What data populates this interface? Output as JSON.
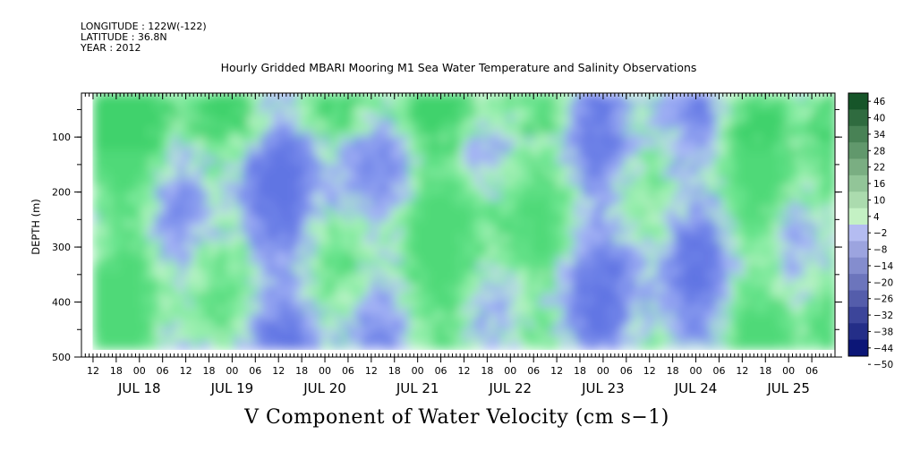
{
  "header": {
    "longitude": "LONGITUDE : 122W(-122)",
    "latitude": "LATITUDE : 36.8N",
    "year": "YEAR : 2012"
  },
  "colors": {
    "negative_high": "#000a6e",
    "negative_low": "#c8d0ff",
    "positive_low": "#c8f5c8",
    "positive_high": "#0a4a1e",
    "plot_field_mid": "#8ea0ee",
    "plot_field_green": "#5fe08a"
  },
  "chart_data": {
    "type": "heatmap",
    "title": "Hourly Gridded MBARI Mooring M1 Sea Water Temperature and Salinity Observations",
    "xlabel": "V Component of Water Velocity (cm s−1)",
    "ylabel": "DEPTH (m)",
    "y_axis": {
      "range": [
        500,
        20
      ],
      "inverted": true,
      "ticks": [
        100,
        200,
        300,
        400,
        500
      ],
      "tick_labels": [
        "100",
        "200",
        "300",
        "400",
        "500"
      ]
    },
    "x_axis": {
      "range": [
        "2012-07-17T09:00",
        "2012-07-25T12:00"
      ],
      "hour_ticks": [
        {
          "t": "2012-07-17T12:00",
          "label": "12"
        },
        {
          "t": "2012-07-17T18:00",
          "label": "18"
        },
        {
          "t": "2012-07-18T00:00",
          "label": "00"
        },
        {
          "t": "2012-07-18T06:00",
          "label": "06"
        },
        {
          "t": "2012-07-18T12:00",
          "label": "12"
        },
        {
          "t": "2012-07-18T18:00",
          "label": "18"
        },
        {
          "t": "2012-07-19T00:00",
          "label": "00"
        },
        {
          "t": "2012-07-19T06:00",
          "label": "06"
        },
        {
          "t": "2012-07-19T12:00",
          "label": "12"
        },
        {
          "t": "2012-07-19T18:00",
          "label": "18"
        },
        {
          "t": "2012-07-20T00:00",
          "label": "00"
        },
        {
          "t": "2012-07-20T06:00",
          "label": "06"
        },
        {
          "t": "2012-07-20T12:00",
          "label": "12"
        },
        {
          "t": "2012-07-20T18:00",
          "label": "18"
        },
        {
          "t": "2012-07-21T00:00",
          "label": "00"
        },
        {
          "t": "2012-07-21T06:00",
          "label": "06"
        },
        {
          "t": "2012-07-21T12:00",
          "label": "12"
        },
        {
          "t": "2012-07-21T18:00",
          "label": "18"
        },
        {
          "t": "2012-07-22T00:00",
          "label": "00"
        },
        {
          "t": "2012-07-22T06:00",
          "label": "06"
        },
        {
          "t": "2012-07-22T12:00",
          "label": "12"
        },
        {
          "t": "2012-07-22T18:00",
          "label": "18"
        },
        {
          "t": "2012-07-23T00:00",
          "label": "00"
        },
        {
          "t": "2012-07-23T06:00",
          "label": "06"
        },
        {
          "t": "2012-07-23T12:00",
          "label": "12"
        },
        {
          "t": "2012-07-23T18:00",
          "label": "18"
        },
        {
          "t": "2012-07-24T00:00",
          "label": "00"
        },
        {
          "t": "2012-07-24T06:00",
          "label": "06"
        },
        {
          "t": "2012-07-24T12:00",
          "label": "12"
        },
        {
          "t": "2012-07-24T18:00",
          "label": "18"
        },
        {
          "t": "2012-07-25T00:00",
          "label": "00"
        },
        {
          "t": "2012-07-25T06:00",
          "label": "06"
        }
      ],
      "day_labels": [
        {
          "t": "2012-07-18T00:00",
          "label": "JUL 18"
        },
        {
          "t": "2012-07-19T00:00",
          "label": "JUL 19"
        },
        {
          "t": "2012-07-20T00:00",
          "label": "JUL 20"
        },
        {
          "t": "2012-07-21T00:00",
          "label": "JUL 21"
        },
        {
          "t": "2012-07-22T00:00",
          "label": "JUL 22"
        },
        {
          "t": "2012-07-23T00:00",
          "label": "JUL 23"
        },
        {
          "t": "2012-07-24T00:00",
          "label": "JUL 24"
        },
        {
          "t": "2012-07-25T00:00",
          "label": "JUL 25"
        }
      ]
    },
    "data_coverage": {
      "time_range": [
        "2012-07-17T12:00",
        "2012-07-25T12:00"
      ],
      "depth_range": [
        20,
        485
      ]
    },
    "colorbar": {
      "levels": [
        -50,
        -44,
        -38,
        -32,
        -26,
        -20,
        -14,
        -8,
        -2,
        4,
        10,
        16,
        22,
        28,
        34,
        40,
        46
      ],
      "labels": [
        "46",
        "40",
        "34",
        "28",
        "22",
        "16",
        "10",
        "4",
        "−2",
        "−8",
        "−14",
        "−20",
        "−26",
        "−32",
        "−38",
        "−44",
        "−50"
      ]
    },
    "grid": false,
    "legend_position": "right"
  }
}
